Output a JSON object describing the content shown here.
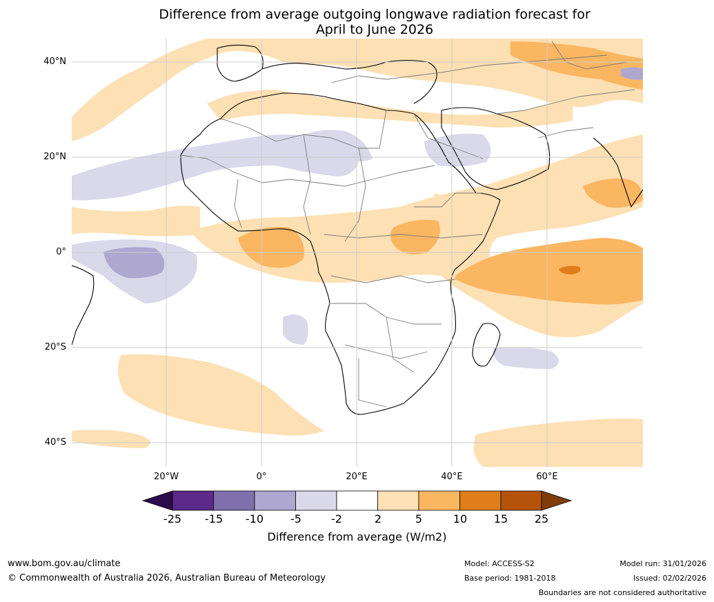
{
  "title": {
    "line1": "Difference from average outgoing longwave radiation forecast for",
    "line2": "April to June 2026"
  },
  "map": {
    "latitude_labels": [
      "40°N",
      "20°N",
      "0°",
      "20°S",
      "40°S"
    ],
    "longitude_labels": [
      "20°W",
      "0°",
      "20°E",
      "40°E",
      "60°E"
    ]
  },
  "legend": {
    "ticks": [
      "-25",
      "-15",
      "-10",
      "-5",
      "-2",
      "2",
      "5",
      "10",
      "15",
      "25"
    ],
    "colors": [
      "#2d0b4d",
      "#5b2a8a",
      "#7f70ad",
      "#aea7d0",
      "#d9d9ea",
      "#ffffff",
      "#fde0b4",
      "#fbb662",
      "#df7e1a",
      "#b45309",
      "#7f3b08"
    ],
    "label": "Difference from average (W/m2)"
  },
  "footer": {
    "website": "www.bom.gov.au/climate",
    "copyright": "© Commonwealth of Australia 2026, Australian Bureau of Meteorology",
    "model": "Model: ACCESS-S2",
    "base_period": "Base period: 1981-2018",
    "model_run": "Model run: 31/01/2026",
    "issued": "Issued: 02/02/2026",
    "disclaimer": "Boundaries are not considered authoritative"
  }
}
